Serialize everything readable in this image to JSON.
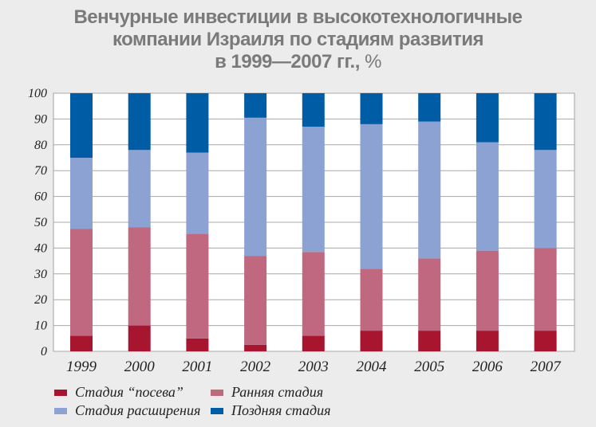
{
  "chart_data": {
    "type": "bar",
    "stacked": true,
    "title_lines": [
      "Венчурные инвестиции в высокотехнологичные",
      "компании Израиля по стадиям развития",
      "в 1999—2007 гг.,"
    ],
    "title_unit": "%",
    "xlabel": "",
    "ylabel": "",
    "ylim": [
      0,
      100
    ],
    "yticks": [
      0,
      10,
      20,
      30,
      40,
      50,
      60,
      70,
      80,
      90,
      100
    ],
    "grid": true,
    "legend_position": "bottom",
    "categories": [
      "1999",
      "2000",
      "2001",
      "2002",
      "2003",
      "2004",
      "2005",
      "2006",
      "2007"
    ],
    "series": [
      {
        "name": "Стадия “посева”",
        "color": "#a8152f",
        "values": [
          6,
          10,
          5,
          2.5,
          6,
          8,
          8,
          8,
          8
        ]
      },
      {
        "name": "Ранняя стадия",
        "color": "#c06880",
        "values": [
          41.5,
          38,
          40.5,
          34.5,
          32.5,
          24,
          28,
          31,
          32
        ]
      },
      {
        "name": "Стадия расширения",
        "color": "#8ca2d2",
        "values": [
          27.5,
          30,
          31.5,
          53.5,
          48.5,
          56,
          53,
          42,
          38
        ]
      },
      {
        "name": "Поздняя стадия",
        "color": "#005ca5",
        "values": [
          25,
          22,
          23,
          9.5,
          13,
          12,
          11,
          19,
          22
        ]
      }
    ]
  }
}
